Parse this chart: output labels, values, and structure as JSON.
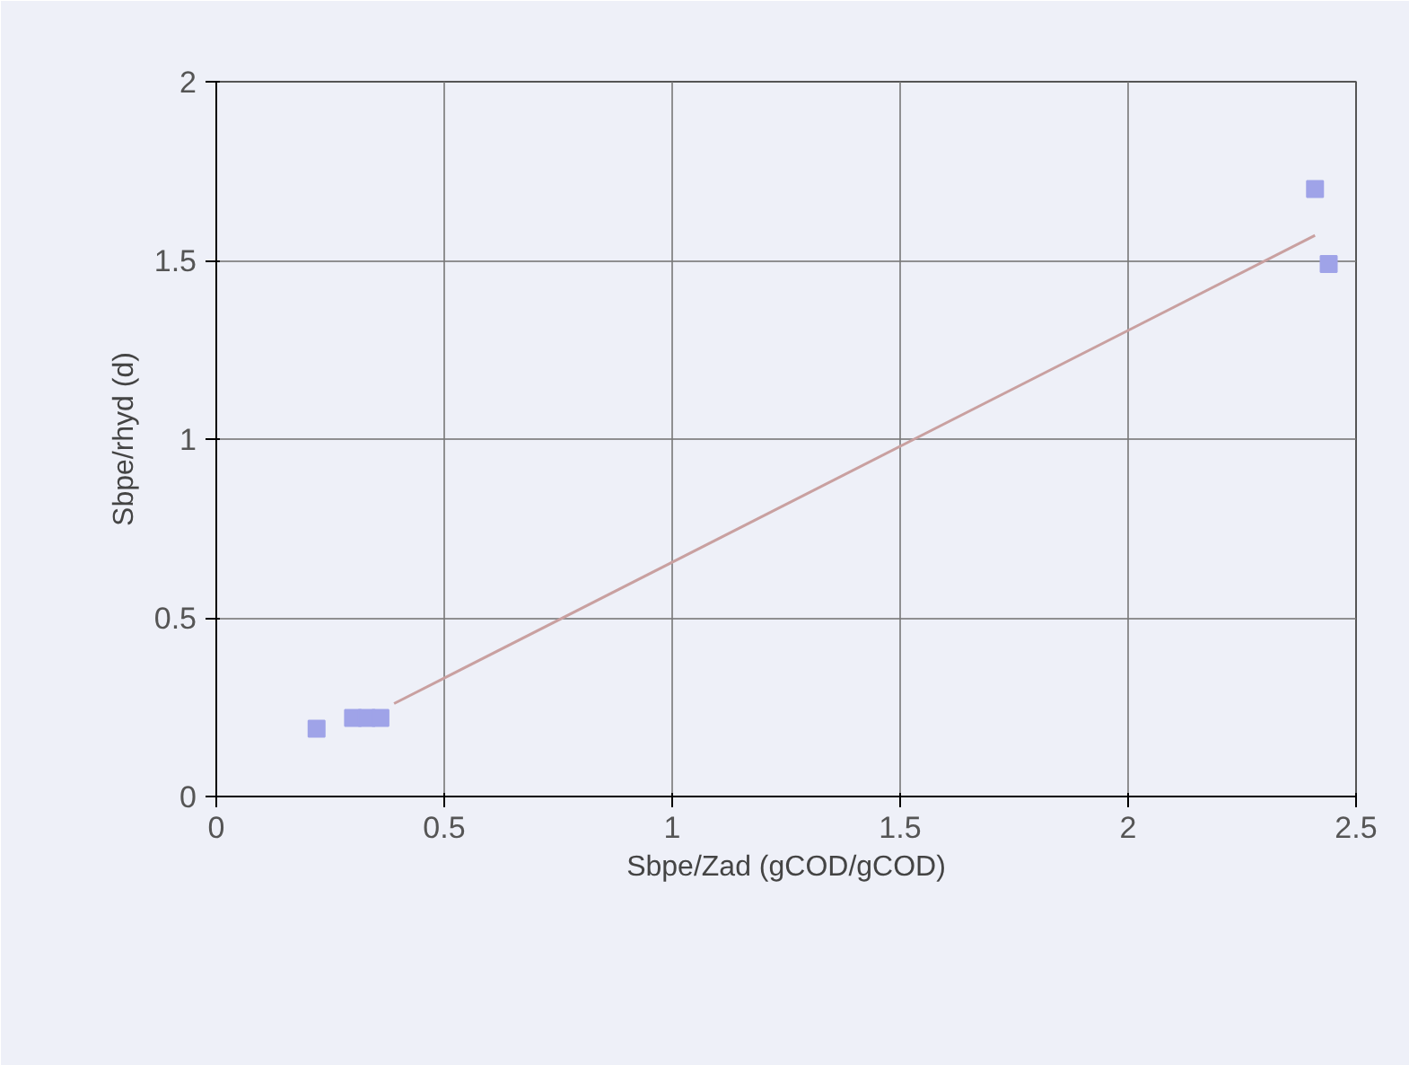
{
  "chart_data": {
    "type": "scatter",
    "xlabel": "Sbpe/Zad (gCOD/gCOD)",
    "ylabel": "Sbpe/rhyd (d)",
    "xlim": [
      0,
      2.5
    ],
    "ylim": [
      0,
      2
    ],
    "xticks": [
      0,
      0.5,
      1,
      1.5,
      2,
      2.5
    ],
    "yticks": [
      0,
      0.5,
      1,
      1.5,
      2
    ],
    "grid": true,
    "marker": "square",
    "series": [
      {
        "color": "#9fa3e8",
        "x": [
          0.22,
          0.3,
          0.33,
          0.36,
          2.41,
          2.44
        ],
        "values": [
          0.19,
          0.22,
          0.22,
          0.22,
          1.7,
          1.49
        ]
      },
      {
        "type": "line",
        "color": "#c9a0a0",
        "x": [
          0.39,
          2.41
        ],
        "values": [
          0.26,
          1.57
        ],
        "marker": "none"
      }
    ]
  }
}
